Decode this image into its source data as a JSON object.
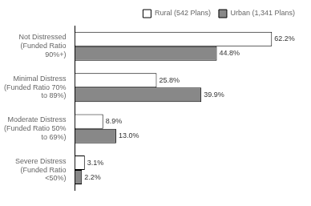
{
  "chart_data": {
    "type": "bar",
    "orientation": "horizontal",
    "categories": [
      "Not Distressed\n(Funded Ratio\n90%+)",
      "Minimal Distress\n(Funded Ratio 70%\nto 89%)",
      "Moderate Distress\n(Funded Ratio 50%\nto 69%)",
      "Severe Distress\n(Funded Ratio\n<50%)"
    ],
    "series": [
      {
        "name": "Rural (542 Plans)",
        "color": "#ffffff",
        "values": [
          62.2,
          25.8,
          8.9,
          3.1
        ],
        "value_labels": [
          "62.2%",
          "25.8%",
          "8.9%",
          "3.1%"
        ]
      },
      {
        "name": "Urban (1,341 Plans)",
        "color": "#888888",
        "values": [
          44.8,
          39.9,
          13.0,
          2.2
        ],
        "value_labels": [
          "44.8%",
          "39.9%",
          "13.0%",
          "2.2%"
        ]
      }
    ],
    "xlim": [
      0,
      72
    ],
    "tick_labels": "y",
    "grid": false,
    "legend": "upper right",
    "data_labels": true
  }
}
